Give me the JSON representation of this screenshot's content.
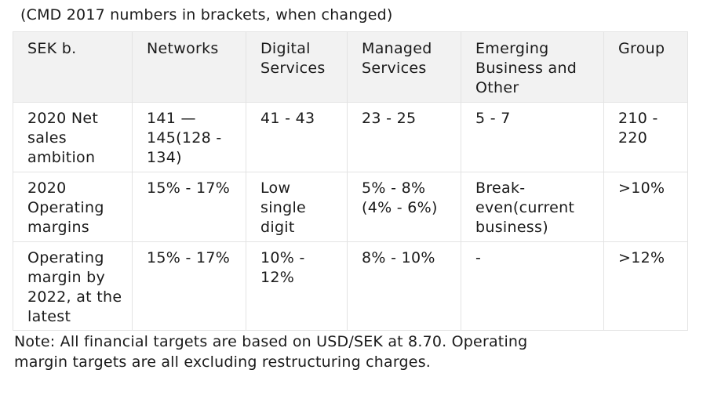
{
  "caption": "(CMD 2017 numbers in brackets, when changed)",
  "table": {
    "headers": [
      "SEK b.",
      "Networks",
      "Digital Services",
      "Managed Services",
      "Emerging Business and Other",
      "Group"
    ],
    "rows": [
      [
        "2020 Net sales ambition",
        "141 — 145(128 - 134)",
        "41 - 43",
        "23 - 25",
        "5 - 7",
        "210 - 220"
      ],
      [
        "2020 Operating margins",
        "15% - 17%",
        "Low single digit",
        "5% - 8%(4% - 6%)",
        "Break-even(current business)",
        ">10%"
      ],
      [
        "Operating margin by 2022, at the latest",
        "15% - 17%",
        "10% - 12%",
        "8% - 10%",
        "-",
        ">12%"
      ]
    ]
  },
  "note": "Note: All financial targets are based on USD/SEK at 8.70. Operating margin targets are all excluding restructuring charges."
}
